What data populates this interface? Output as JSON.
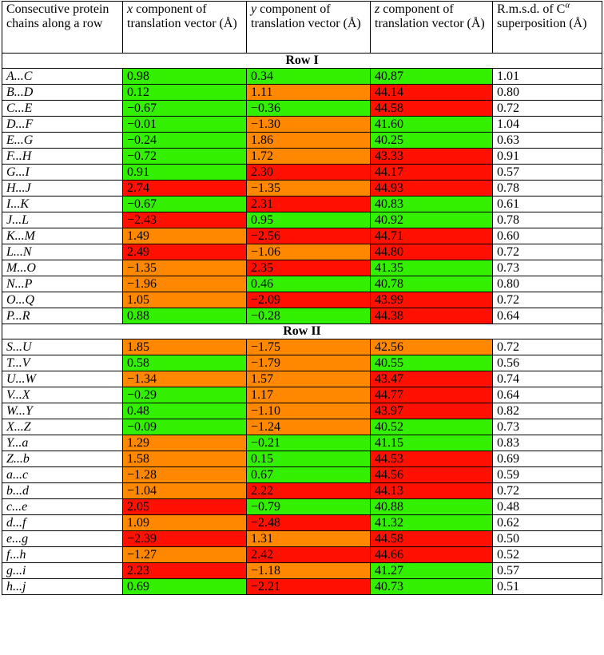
{
  "colors": {
    "g": "#33f000",
    "o": "#ff8800",
    "r": "#ff1000",
    "w": "#ffffff"
  },
  "headers": {
    "chains": "Consecutive protein chains along a row",
    "x": {
      "var": "x",
      "text": " component of translation vector (Å)"
    },
    "y": {
      "var": "y",
      "text": " component of translation vector (Å)"
    },
    "z": {
      "var": "z",
      "text": " component of translation vector (Å)"
    },
    "rmsd": {
      "text": "R.m.s.d. of C",
      "sup": "α",
      "tail": " superposition (Å)"
    }
  },
  "sections": [
    {
      "title": "Row I",
      "rows": [
        {
          "pair": "A...C",
          "x": "0.98",
          "xc": "g",
          "y": "0.34",
          "yc": "g",
          "z": "40.87",
          "zc": "g",
          "rmsd": "1.01"
        },
        {
          "pair": "B...D",
          "x": "0.12",
          "xc": "g",
          "y": "1.11",
          "yc": "o",
          "z": "44.14",
          "zc": "r",
          "rmsd": "0.80"
        },
        {
          "pair": "C...E",
          "x": "−0.67",
          "xc": "g",
          "y": "−0.36",
          "yc": "g",
          "z": "44.58",
          "zc": "r",
          "rmsd": "0.72"
        },
        {
          "pair": "D...F",
          "x": "−0.01",
          "xc": "g",
          "y": "−1.30",
          "yc": "o",
          "z": "41.60",
          "zc": "g",
          "rmsd": "1.04"
        },
        {
          "pair": "E...G",
          "x": "−0.24",
          "xc": "g",
          "y": "1.86",
          "yc": "o",
          "z": "40.25",
          "zc": "g",
          "rmsd": "0.63"
        },
        {
          "pair": "F...H",
          "x": "−0.72",
          "xc": "g",
          "y": "1.72",
          "yc": "o",
          "z": "43.33",
          "zc": "r",
          "rmsd": "0.91"
        },
        {
          "pair": "G...I",
          "x": "0.91",
          "xc": "g",
          "y": "2.30",
          "yc": "r",
          "z": "44.17",
          "zc": "r",
          "rmsd": "0.57"
        },
        {
          "pair": "H...J",
          "x": "2.74",
          "xc": "r",
          "y": "−1.35",
          "yc": "o",
          "z": "44.93",
          "zc": "r",
          "rmsd": "0.78"
        },
        {
          "pair": "I...K",
          "x": "−0.67",
          "xc": "g",
          "y": "2.31",
          "yc": "r",
          "z": "40.83",
          "zc": "g",
          "rmsd": "0.61"
        },
        {
          "pair": "J...L",
          "x": "−2.43",
          "xc": "r",
          "y": "0.95",
          "yc": "g",
          "z": "40.92",
          "zc": "g",
          "rmsd": "0.78"
        },
        {
          "pair": "K...M",
          "x": "1.49",
          "xc": "o",
          "y": "−2.56",
          "yc": "r",
          "z": "44.71",
          "zc": "r",
          "rmsd": "0.60"
        },
        {
          "pair": "L...N",
          "x": "2.49",
          "xc": "r",
          "y": "−1.06",
          "yc": "o",
          "z": "44.80",
          "zc": "r",
          "rmsd": "0.72"
        },
        {
          "pair": "M...O",
          "x": "−1.35",
          "xc": "o",
          "y": "2.35",
          "yc": "r",
          "z": "41.35",
          "zc": "g",
          "rmsd": "0.73"
        },
        {
          "pair": "N...P",
          "x": "−1.96",
          "xc": "o",
          "y": "0.46",
          "yc": "g",
          "z": "40.78",
          "zc": "g",
          "rmsd": "0.80"
        },
        {
          "pair": "O...Q",
          "x": "1.05",
          "xc": "o",
          "y": "−2.09",
          "yc": "r",
          "z": "43.99",
          "zc": "r",
          "rmsd": "0.72"
        },
        {
          "pair": "P...R",
          "x": "0.88",
          "xc": "g",
          "y": "−0.28",
          "yc": "g",
          "z": "44.38",
          "zc": "r",
          "rmsd": "0.64"
        }
      ]
    },
    {
      "title": "Row II",
      "rows": [
        {
          "pair": "S...U",
          "x": "1.85",
          "xc": "o",
          "y": "−1.75",
          "yc": "o",
          "z": "42.56",
          "zc": "o",
          "rmsd": "0.72"
        },
        {
          "pair": "T...V",
          "x": "0.58",
          "xc": "g",
          "y": "−1.79",
          "yc": "o",
          "z": "40.55",
          "zc": "g",
          "rmsd": "0.56"
        },
        {
          "pair": "U...W",
          "x": "−1.34",
          "xc": "o",
          "y": "1.57",
          "yc": "o",
          "z": "43.47",
          "zc": "r",
          "rmsd": "0.74"
        },
        {
          "pair": "V...X",
          "x": "−0.29",
          "xc": "g",
          "y": "1.17",
          "yc": "o",
          "z": "44.77",
          "zc": "r",
          "rmsd": "0.64"
        },
        {
          "pair": "W...Y",
          "x": "0.48",
          "xc": "g",
          "y": "−1.10",
          "yc": "o",
          "z": "43.97",
          "zc": "r",
          "rmsd": "0.82"
        },
        {
          "pair": "X...Z",
          "x": "−0.09",
          "xc": "g",
          "y": "−1.24",
          "yc": "o",
          "z": "40.52",
          "zc": "g",
          "rmsd": "0.73"
        },
        {
          "pair": "Y...a",
          "x": "1.29",
          "xc": "o",
          "y": "−0.21",
          "yc": "g",
          "z": "41.15",
          "zc": "g",
          "rmsd": "0.83"
        },
        {
          "pair": "Z...b",
          "x": "1.58",
          "xc": "o",
          "y": "0.15",
          "yc": "g",
          "z": "44.53",
          "zc": "r",
          "rmsd": "0.69"
        },
        {
          "pair": "a...c",
          "x": "−1.28",
          "xc": "o",
          "y": "0.67",
          "yc": "g",
          "z": "44.56",
          "zc": "r",
          "rmsd": "0.59"
        },
        {
          "pair": "b...d",
          "x": "−1.04",
          "xc": "o",
          "y": "2.22",
          "yc": "r",
          "z": "44.13",
          "zc": "r",
          "rmsd": "0.72"
        },
        {
          "pair": "c...e",
          "x": "2.05",
          "xc": "r",
          "y": "−0.79",
          "yc": "g",
          "z": "40.88",
          "zc": "g",
          "rmsd": "0.48"
        },
        {
          "pair": "d...f",
          "x": "1.09",
          "xc": "o",
          "y": "−2.48",
          "yc": "r",
          "z": "41.32",
          "zc": "g",
          "rmsd": "0.62"
        },
        {
          "pair": "e...g",
          "x": "−2.39",
          "xc": "r",
          "y": "1.31",
          "yc": "o",
          "z": "44.58",
          "zc": "r",
          "rmsd": "0.50"
        },
        {
          "pair": "f...h",
          "x": "−1.27",
          "xc": "o",
          "y": "2.42",
          "yc": "r",
          "z": "44.66",
          "zc": "r",
          "rmsd": "0.52"
        },
        {
          "pair": "g...i",
          "x": "2.23",
          "xc": "r",
          "y": "−1.18",
          "yc": "o",
          "z": "41.27",
          "zc": "g",
          "rmsd": "0.57"
        },
        {
          "pair": "h...j",
          "x": "0.69",
          "xc": "g",
          "y": "−2.21",
          "yc": "r",
          "z": "40.73",
          "zc": "g",
          "rmsd": "0.51"
        }
      ]
    }
  ]
}
